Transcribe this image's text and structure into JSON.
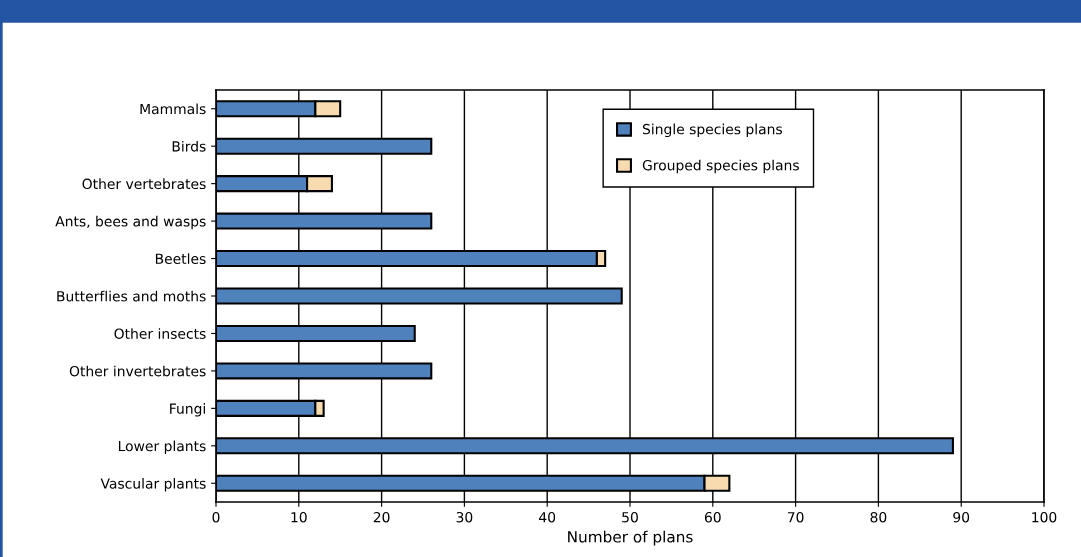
{
  "chart_data": {
    "type": "bar",
    "orientation": "horizontal",
    "stacked": true,
    "xlabel": "Number of plans",
    "categories": [
      "Mammals",
      "Birds",
      "Other vertebrates",
      "Ants, bees and wasps",
      "Beetles",
      "Butterflies and moths",
      "Other insects",
      "Other invertebrates",
      "Fungi",
      "Lower plants",
      "Vascular plants"
    ],
    "series": [
      {
        "name": "Single species plans",
        "color": "#4f81bd",
        "values": [
          12,
          26,
          11,
          26,
          46,
          49,
          24,
          26,
          12,
          89,
          59
        ]
      },
      {
        "name": "Grouped species plans",
        "color": "#f8dcb0",
        "values": [
          3,
          null,
          3,
          null,
          1,
          null,
          null,
          null,
          1,
          null,
          3
        ]
      }
    ],
    "xlim": [
      0,
      100
    ],
    "xticks": [
      0,
      10,
      20,
      30,
      40,
      50,
      60,
      70,
      80,
      90,
      100
    ],
    "grid": "x",
    "legend": "top right"
  }
}
